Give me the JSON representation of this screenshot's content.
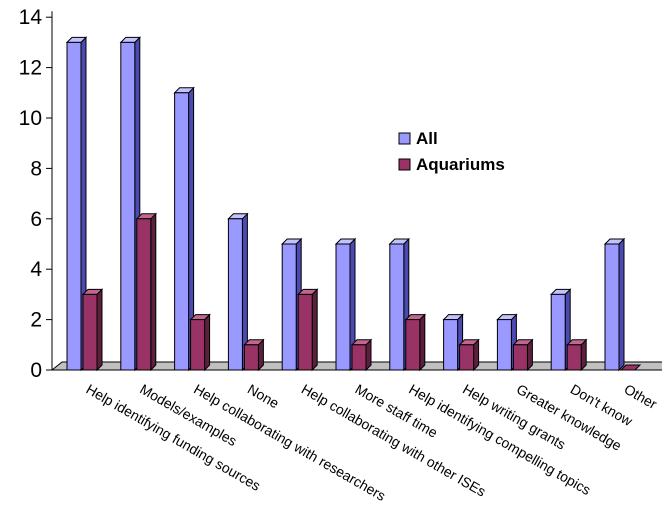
{
  "chart_data": {
    "type": "bar",
    "style": "3d-clustered",
    "categories": [
      "Help identifying funding sources",
      "Models/examples",
      "Help collaborating with researchers",
      "None",
      "Help collaborating with other ISEs",
      "More staff time",
      "Help identifying compelling topics",
      "Help writing grants",
      "Greater knowledge",
      "Don't know",
      "Other"
    ],
    "series": [
      {
        "name": "All",
        "values": [
          13,
          13,
          11,
          6,
          5,
          5,
          5,
          2,
          2,
          3,
          5
        ],
        "color": "#9999ff",
        "side_color": "#4a4ab0",
        "top_color": "#c2c2ff"
      },
      {
        "name": "Aquariums",
        "values": [
          3,
          6,
          2,
          1,
          3,
          1,
          2,
          1,
          1,
          1,
          0
        ],
        "color": "#993366",
        "side_color": "#5c1f3d",
        "top_color": "#c26690"
      }
    ],
    "yticks": [
      "0",
      "2",
      "4",
      "6",
      "8",
      "10",
      "12",
      "14"
    ],
    "ylim": [
      0,
      14
    ],
    "grid": false,
    "legend_position": "right-center",
    "floor_color": "#c0c0c0",
    "wall_color": "#ffffff"
  }
}
